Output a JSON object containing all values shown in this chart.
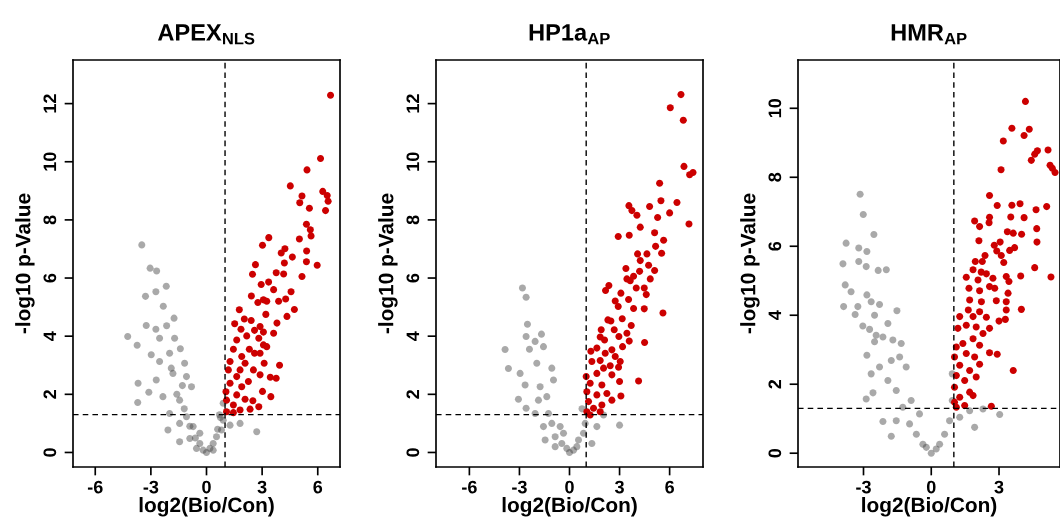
{
  "chart_data": [
    {
      "type": "scatter",
      "title": "APEX$_{NLS}$",
      "xlabel": "log2(Bio/Con)",
      "ylabel": "-log10 p-Value",
      "xlim": [
        -7.2,
        7.2
      ],
      "ylim": [
        -0.5,
        13.5
      ],
      "xticks": [
        -6,
        -3,
        0,
        3,
        6
      ],
      "yticks": [
        0,
        2,
        4,
        6,
        8,
        10,
        12
      ],
      "marker": "circle",
      "grid": false,
      "ref_lines": [
        {
          "axis": "x",
          "value": 1,
          "color": "#000000",
          "line_style": "dashed"
        },
        {
          "axis": "y",
          "value": 1.3,
          "color": "#000000",
          "line_style": "dashed"
        }
      ],
      "series": [
        {
          "color": "#404040",
          "x": [
            -3.49,
            -3.04,
            -2.69,
            -2.17,
            -2.73,
            -3.29,
            -2.33,
            -1.75,
            -3.25,
            -2.73,
            -2.15,
            -4.25,
            -3.74,
            -2.53,
            -1.72,
            -2.98,
            -1.99,
            -1.41,
            -2.53,
            -1.18,
            -3.69,
            -3.11,
            -3.71,
            -2.71,
            -1.81,
            -1.08,
            -2.35,
            -0.81,
            -1.45,
            -1.99,
            -2.08,
            -1.45,
            -1.08,
            -0.72,
            -1.45,
            -0.9,
            -0.54,
            -0.36,
            0,
            0.36,
            0.54,
            0.81,
            0.9,
            0.9,
            0.75,
            1.27,
            1.81,
            2.71,
            -0.36,
            0.36,
            -0.18,
            0.18,
            -0.6,
            -0.9,
            0.6,
            -1.2,
            -1.6,
            0.7,
            -1.3,
            -1.9
          ],
          "values": [
            7.14,
            6.34,
            6.24,
            5.72,
            5.53,
            5.37,
            5.03,
            4.62,
            4.37,
            4.24,
            4.36,
            3.99,
            3.69,
            3.93,
            3.93,
            3.36,
            3.41,
            3.57,
            3.13,
            3.07,
            2.38,
            2.07,
            1.72,
            2.49,
            2.72,
            2.61,
            1.92,
            2.26,
            1.8,
            1.34,
            0.77,
            1.0,
            1.23,
            0.89,
            0.37,
            0.48,
            0.14,
            0.31,
            0,
            0.31,
            0.54,
            0.77,
            1.11,
            1.69,
            1.2,
            0.94,
            1.0,
            0.71,
            0.66,
            0.08,
            0.08,
            0.14,
            0.5,
            0.9,
            0.8,
            1.5,
            2.0,
            1.3,
            2.3,
            2.9
          ]
        },
        {
          "color": "#cc0000",
          "x": [
            6.69,
            6.15,
            5.42,
            4.52,
            5.15,
            5.03,
            6.27,
            6.51,
            6.56,
            6.42,
            5.55,
            5.39,
            5.6,
            5.64,
            5.01,
            3.36,
            3.02,
            4.23,
            4.03,
            5.4,
            4.63,
            5.39,
            5.97,
            2.64,
            2.48,
            4.2,
            3.76,
            4.16,
            5.15,
            2.95,
            3.35,
            3.62,
            4.56,
            2.42,
            3.07,
            3.25,
            3.89,
            4.27,
            2.77,
            4.74,
            4.34,
            1.77,
            3.2,
            2.04,
            2.41,
            1.52,
            3.8,
            2.89,
            1.86,
            2.59,
            3.07,
            2.17,
            3.62,
            2.82,
            1.63,
            3.07,
            3.25,
            2.31,
            1.45,
            2.59,
            1.9,
            2.89,
            1.27,
            2.08,
            3.11,
            3.94,
            2.53,
            1.81,
            1.18,
            2.89,
            1.63,
            3.44,
            3.76,
            2.26,
            1.27,
            1.9,
            3.02,
            1.05,
            1.63,
            3.47,
            2.08,
            1.08,
            2.5,
            1.45,
            2.82,
            2.35,
            1.81,
            1.08,
            1.45
          ],
          "values": [
            12.29,
            10.11,
            9.72,
            9.17,
            8.82,
            8.59,
            8.98,
            8.84,
            8.64,
            8.32,
            8.4,
            7.85,
            7.66,
            7.45,
            7.34,
            7.39,
            7.13,
            7.01,
            6.86,
            6.93,
            6.72,
            6.56,
            6.44,
            6.46,
            6.13,
            6.52,
            6.18,
            6.14,
            6.05,
            5.78,
            5.86,
            5.6,
            5.53,
            5.38,
            5.25,
            5.2,
            5.2,
            5.28,
            5.16,
            4.92,
            4.68,
            4.91,
            4.75,
            4.59,
            4.54,
            4.43,
            4.45,
            4.33,
            4.24,
            4.2,
            4.14,
            4.01,
            4.1,
            3.93,
            3.87,
            3.7,
            3.64,
            3.55,
            3.55,
            3.41,
            3.3,
            3.41,
            3.13,
            3.07,
            3.07,
            3.0,
            2.84,
            2.84,
            2.84,
            2.67,
            2.61,
            2.59,
            2.55,
            2.44,
            2.38,
            2.26,
            2.1,
            2.09,
            1.98,
            1.92,
            1.83,
            1.8,
            1.78,
            1.63,
            1.57,
            1.49,
            1.46,
            1.4,
            1.37
          ]
        }
      ]
    },
    {
      "type": "scatter",
      "title": "HP1a$_{AP}$",
      "xlabel": "log2(Bio/Con)",
      "ylabel": "-log10 p-Value",
      "xlim": [
        -8,
        8
      ],
      "ylim": [
        -0.5,
        13.5
      ],
      "xticks": [
        -6,
        -3,
        0,
        3,
        6
      ],
      "yticks": [
        0,
        2,
        4,
        6,
        8,
        10,
        12
      ],
      "marker": "circle",
      "grid": false,
      "ref_lines": [
        {
          "axis": "x",
          "value": 1,
          "color": "#000000",
          "line_style": "dashed"
        },
        {
          "axis": "y",
          "value": 1.3,
          "color": "#000000",
          "line_style": "dashed"
        }
      ],
      "series": [
        {
          "color": "#404040",
          "x": [
            -2.82,
            -2.6,
            -2.52,
            -2.6,
            -1.68,
            -2.06,
            -3.86,
            -3.66,
            -2.96,
            -2.4,
            -1.56,
            -1.06,
            -1.96,
            -2.66,
            -3.06,
            -2.6,
            -1.76,
            -1.36,
            -0.96,
            -2.06,
            -1.56,
            -1.06,
            -0.86,
            -0.86,
            -0.46,
            -0.36,
            0,
            0.44,
            0.54,
            0.84,
            0.94,
            0.75,
            1.34,
            2.04,
            3.0,
            1.64,
            -0.16,
            0.24,
            -1.26,
            -1.46,
            -0.56,
            -1.86
          ],
          "values": [
            5.66,
            5.34,
            4.41,
            3.99,
            4.07,
            3.82,
            3.54,
            2.89,
            2.72,
            3.55,
            3.64,
            2.9,
            3.07,
            2.32,
            1.83,
            1.52,
            2.26,
            1.92,
            2.49,
            1.34,
            0.89,
            1.0,
            0.54,
            0.2,
            0.31,
            0.66,
            0,
            0.2,
            0.43,
            0.66,
            1.0,
            1.5,
            0.31,
            1.29,
            0.94,
            0.89,
            0.14,
            0.08,
            1.34,
            0.43,
            0.89,
            1.8
          ]
        },
        {
          "color": "#cc0000",
          "x": [
            6.68,
            6.04,
            6.82,
            6.86,
            7.4,
            7.2,
            5.4,
            5.48,
            6.44,
            4.8,
            3.56,
            3.74,
            4.04,
            5.28,
            6.0,
            7.16,
            4.24,
            2.92,
            3.58,
            5.1,
            5.64,
            5.16,
            4.08,
            4.64,
            5.52,
            4.24,
            4.74,
            5.1,
            3.38,
            4.2,
            3.44,
            3.64,
            3.84,
            4.84,
            2.16,
            2.36,
            3.08,
            4.0,
            4.48,
            4.6,
            2.74,
            3.54,
            2.92,
            3.84,
            4.48,
            5.6,
            3.16,
            2.3,
            2.48,
            3.7,
            2.68,
            1.9,
            2.96,
            3.44,
            3.58,
            1.84,
            2.1,
            4.5,
            3.18,
            1.64,
            2.54,
            1.28,
            2.14,
            2.74,
            1.84,
            3.04,
            1.34,
            2.44,
            2.04,
            2.94,
            1.0,
            1.64,
            2.54,
            4.14,
            3.0,
            1.24,
            1.94,
            1.04,
            2.24,
            1.64,
            3.08,
            2.54,
            1.14,
            1.94,
            1.44,
            1.04,
            1.84,
            1.24
          ],
          "values": [
            12.31,
            11.86,
            11.43,
            9.84,
            9.63,
            9.55,
            9.26,
            8.66,
            8.6,
            8.46,
            8.49,
            8.32,
            8.16,
            8.08,
            8.24,
            7.86,
            7.75,
            7.43,
            7.47,
            7.56,
            7.3,
            7.09,
            6.83,
            6.83,
            6.85,
            6.6,
            6.44,
            6.26,
            6.33,
            6.23,
            5.97,
            5.91,
            6.06,
            5.97,
            5.57,
            5.74,
            5.48,
            5.66,
            5.66,
            5.43,
            5.21,
            5.26,
            5.02,
            4.95,
            4.94,
            4.8,
            4.6,
            4.56,
            4.52,
            4.37,
            4.22,
            4.22,
            3.99,
            4.1,
            3.83,
            3.97,
            3.87,
            3.78,
            3.64,
            3.59,
            3.53,
            3.48,
            3.41,
            3.3,
            3.16,
            3.13,
            3.13,
            2.98,
            2.9,
            2.93,
            2.61,
            2.72,
            2.67,
            2.46,
            2.44,
            2.38,
            2.32,
            2.09,
            2.03,
            1.98,
            1.94,
            1.8,
            1.75,
            1.63,
            1.52,
            1.4,
            1.4,
            1.29
          ]
        }
      ]
    },
    {
      "type": "scatter",
      "title": "HMR$_{AP}$",
      "xlabel": "log2(Bio/Con)",
      "ylabel": "-log10 p-Value",
      "xlim": [
        -5.9,
        5.7
      ],
      "ylim": [
        -0.4,
        11.4
      ],
      "xticks": [
        -3,
        0,
        3
      ],
      "yticks": [
        0,
        2,
        4,
        6,
        8,
        10
      ],
      "marker": "circle",
      "grid": false,
      "ref_lines": [
        {
          "axis": "x",
          "value": 1,
          "color": "#000000",
          "line_style": "dashed"
        },
        {
          "axis": "y",
          "value": 1.3,
          "color": "#000000",
          "line_style": "dashed"
        }
      ],
      "series": [
        {
          "color": "#404040",
          "x": [
            -3.15,
            -3.01,
            -2.54,
            -3.77,
            -3.21,
            -2.85,
            -3.91,
            -3.21,
            -2.88,
            -2.35,
            -1.99,
            -3.81,
            -3.55,
            -2.85,
            -3.88,
            -3.25,
            -3.37,
            -2.66,
            -2.29,
            -1.52,
            -2.51,
            -3.03,
            -2.73,
            -2.44,
            -1.92,
            -2.14,
            -2.51,
            -1.7,
            -1.33,
            -2.85,
            -2.66,
            -2.29,
            -1.77,
            -1.4,
            -1.11,
            -2.58,
            -2.88,
            -1.92,
            -1.55,
            -2.14,
            -1.77,
            -1.26,
            -0.89,
            -0.96,
            -0.66,
            -0.37,
            0,
            0.37,
            0.59,
            0.81,
            0.93,
            0.93,
            1.26,
            1.92,
            2.29,
            3.03,
            1.7,
            -0.52,
            -0.22,
            0.22,
            -1.55
          ],
          "values": [
            7.51,
            6.92,
            6.34,
            6.09,
            5.95,
            5.85,
            5.49,
            5.56,
            5.41,
            5.3,
            5.32,
            4.88,
            4.68,
            4.59,
            4.25,
            4.25,
            4.02,
            4.39,
            4.31,
            4.13,
            4.0,
            3.69,
            3.59,
            3.42,
            3.76,
            3.37,
            3.23,
            3.28,
            3.18,
            2.84,
            2.3,
            2.5,
            2.69,
            2.79,
            2.5,
            1.75,
            1.57,
            2.11,
            1.82,
            0.92,
            0.49,
            1.33,
            1.53,
            0.85,
            0.55,
            0.26,
            0,
            0.26,
            0.55,
            0.94,
            1.53,
            2.3,
            1.04,
            0.75,
            1.28,
            1.12,
            1.23,
            1.14,
            0.17,
            0.12,
            0.94
          ]
        },
        {
          "color": "#cc0000",
          "x": [
            4.17,
            3.57,
            4.34,
            4.11,
            3.19,
            5.17,
            4.7,
            4.58,
            4.43,
            5.26,
            5.36,
            5.48,
            3.09,
            2.58,
            2.92,
            3.57,
            3.93,
            4.64,
            5.11,
            2.58,
            3.52,
            4.11,
            1.92,
            2.56,
            2.14,
            4.67,
            3.37,
            3.63,
            4.0,
            4.68,
            2.11,
            3.05,
            2.79,
            3.69,
            3.47,
            2.9,
            2.38,
            3.1,
            1.95,
            3.21,
            2.26,
            4.58,
            5.3,
            3.96,
            1.85,
            2.21,
            2.44,
            1.55,
            2.73,
            3.32,
            3.44,
            2.07,
            2.58,
            1.67,
            2.14,
            2.81,
            3.4,
            1.7,
            2.22,
            2.88,
            3.32,
            1.64,
            3.99,
            2.14,
            3.32,
            1.26,
            1.85,
            2.44,
            3.0,
            3.28,
            1.55,
            1.99,
            1.18,
            2.58,
            2.29,
            1.85,
            1.4,
            1.11,
            2.14,
            1.55,
            2.58,
            2.92,
            1.03,
            1.92,
            1.26,
            2.14,
            1.7,
            3.63,
            1.11,
            1.48,
            1.99,
            1.03,
            1.7,
            1.26,
            1.85,
            1.03,
            1.48,
            2.66,
            1.11
          ],
          "values": [
            10.2,
            9.42,
            9.39,
            9.21,
            9.05,
            8.79,
            8.77,
            8.67,
            8.49,
            8.35,
            8.26,
            8.14,
            8.22,
            7.47,
            7.18,
            7.19,
            7.23,
            7.06,
            7.15,
            6.84,
            6.85,
            6.83,
            6.73,
            6.68,
            6.57,
            6.51,
            6.42,
            6.38,
            6.35,
            6.12,
            6.16,
            6.12,
            6.03,
            5.96,
            5.88,
            5.86,
            5.73,
            5.73,
            5.56,
            5.53,
            5.56,
            5.38,
            5.11,
            5.14,
            5.32,
            5.25,
            5.2,
            5.1,
            5.07,
            5.12,
            4.98,
            5.02,
            4.83,
            4.78,
            4.71,
            4.78,
            4.64,
            4.44,
            4.39,
            4.42,
            4.39,
            4.15,
            4.17,
            4.1,
            4.15,
            3.96,
            3.96,
            3.94,
            3.83,
            3.88,
            3.71,
            3.66,
            3.62,
            3.62,
            3.47,
            3.32,
            3.18,
            3.08,
            3.13,
            2.89,
            2.91,
            2.87,
            2.79,
            2.79,
            2.55,
            2.58,
            2.4,
            2.4,
            2.25,
            2.11,
            2.21,
            1.91,
            1.77,
            1.62,
            1.67,
            1.48,
            1.38,
            1.36,
            1.33
          ]
        }
      ]
    }
  ]
}
